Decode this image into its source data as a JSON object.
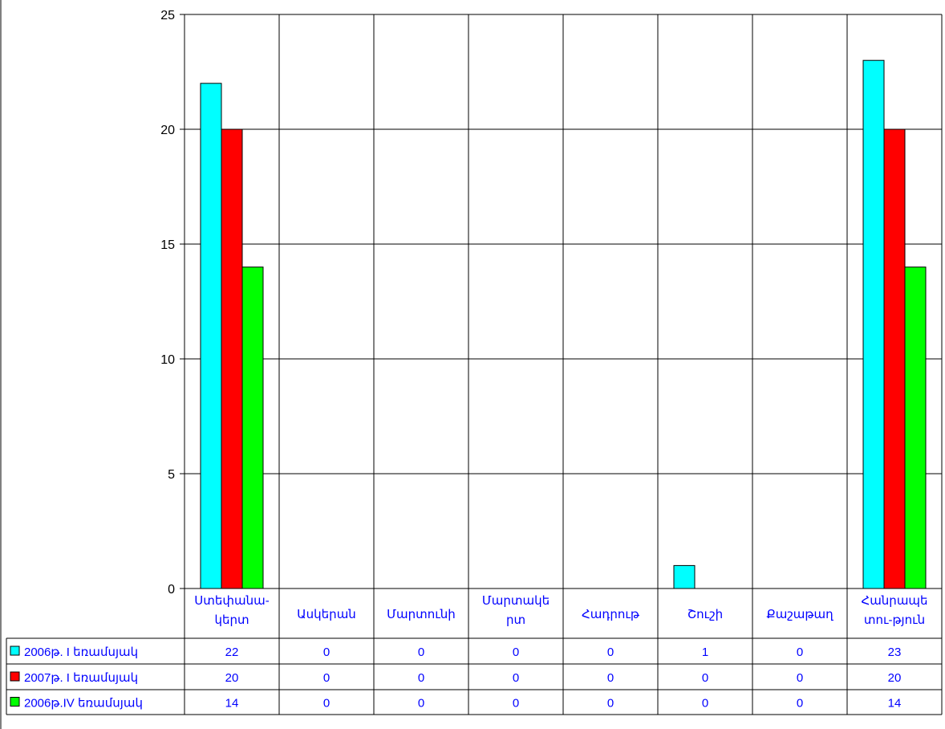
{
  "chart_data": {
    "type": "bar",
    "categories": [
      "Ստեփանա-կերտ",
      "Ասկերան",
      "Մարտունի",
      "Մարտակերտ",
      "Հադրութ",
      "Շուշի",
      "Քաշաթաղ",
      "Հանրապետու-թյուն"
    ],
    "category_lines": [
      [
        "Ստեփանա-",
        "կերտ"
      ],
      [
        "Ասկերան"
      ],
      [
        "Մարտունի"
      ],
      [
        "Մարտակե",
        "րտ"
      ],
      [
        "Հադրութ"
      ],
      [
        "Շուշի"
      ],
      [
        "Քաշաթաղ"
      ],
      [
        "Հանրապե",
        "տու-թյուն"
      ]
    ],
    "series": [
      {
        "name": "2006թ. I եռամսյակ",
        "color": "#00FFFF",
        "values": [
          22,
          0,
          0,
          0,
          0,
          1,
          0,
          23
        ]
      },
      {
        "name": "2007թ. I եռամսյակ",
        "color": "#FF0000",
        "values": [
          20,
          0,
          0,
          0,
          0,
          0,
          0,
          20
        ]
      },
      {
        "name": "2006թ.IV եռամսյակ",
        "color": "#00FF00",
        "values": [
          14,
          0,
          0,
          0,
          0,
          0,
          0,
          14
        ]
      }
    ],
    "y_ticks": [
      0,
      5,
      10,
      15,
      20,
      25
    ],
    "ylim": [
      0,
      25
    ],
    "grid": true,
    "legend_placement": "data-table-left",
    "text_color": "#0000FF"
  }
}
